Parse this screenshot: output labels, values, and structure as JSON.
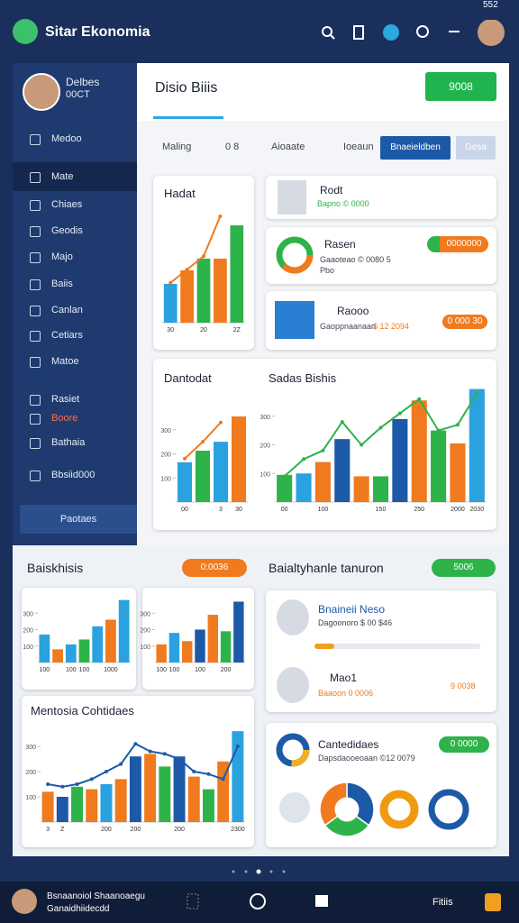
{
  "status": "552",
  "header": {
    "title": "Sitar Ekonomia"
  },
  "profile": {
    "name": "Delbes",
    "sub": "00CT"
  },
  "sidebar": {
    "items": [
      "Medoo",
      "Mate",
      "Chiaes",
      "Geodis",
      "Majo",
      "Baiis",
      "Canlan",
      "Cetiars",
      "Matoe",
      "Rasiet",
      "Boore",
      "Bathaia",
      "Bbsiid000"
    ],
    "button": "Paotaes"
  },
  "main": {
    "title": "Disio Biiis",
    "button": "9008",
    "tabs": [
      "Maling",
      "0 8",
      "Aioaate",
      "Ioeaun",
      "Bnaeieldben",
      "Gesa"
    ]
  },
  "people": [
    {
      "name": "Rodt",
      "detail": "Bapno © 0000"
    },
    {
      "name": "Rasen",
      "detail": "Gaaoteao © 0080 5",
      "detail2": "Pbo",
      "badge": "0000000"
    },
    {
      "name": "Raooo",
      "detail": "Gaoppnaanaan",
      "value": "$ 12 2094",
      "badge": "0 000 30"
    }
  ],
  "lower": {
    "left_title": "Baiskhisis",
    "left_pill": "0:0036",
    "right_title": "Baialtyhanle tanuron",
    "right_pill": "5006",
    "persons": [
      {
        "name": "Bnaineii Neso",
        "detail": "Dagoonoro $ 00 $46"
      },
      {
        "name": "Mao1",
        "detail": "Baaoon 0 0006",
        "badge": "9 0038"
      }
    ],
    "pill2": "0 0000"
  },
  "footer": {
    "name": "Bsnaanoiol Shaanoaegu",
    "sub": "Ganaidhiidecdd",
    "label": "Fitiis"
  },
  "charts": [
    {
      "type": "bar",
      "title": "Hadat",
      "categories": [
        "30",
        null,
        "20",
        null,
        "2Z"
      ],
      "values": [
        146,
        197,
        241,
        241,
        366
      ],
      "colors": [
        "#2aa2e0",
        "#f07a1e",
        "#2eb34a",
        "#f07a1e",
        "#2eb34a"
      ],
      "line": {
        "color": "#f07a1e",
        "values": [
          150,
          200,
          250,
          400,
          null
        ]
      },
      "ylim": [
        0,
        400
      ],
      "yticks": []
    },
    {
      "type": "bar",
      "title": "Dantodat",
      "categories": [
        "00",
        null,
        "3",
        "30"
      ],
      "values": [
        165,
        213,
        250,
        355
      ],
      "colors": [
        "#2aa2e0",
        "#2eb34a",
        "#2aa2e0",
        "#f07a1e"
      ],
      "line": {
        "color": "#f07a1e",
        "values": [
          180,
          250,
          330,
          null
        ]
      },
      "ylim": [
        0,
        400
      ],
      "yticks": [
        100,
        200,
        300
      ]
    },
    {
      "type": "bar",
      "title": "Sadas Bishis",
      "categories": [
        "00",
        null,
        "100",
        null,
        null,
        "150",
        null,
        "250",
        null,
        "2000",
        "2030"
      ],
      "values": [
        95,
        100,
        140,
        220,
        90,
        90,
        290,
        355,
        250,
        205,
        395
      ],
      "colors": [
        "#2eb34a",
        "#2aa2e0",
        "#f07a1e",
        "#1c5aa8",
        "#f07a1e",
        "#2eb34a",
        "#1c5aa8",
        "#f07a1e",
        "#2eb34a",
        "#f07a1e",
        "#2aa2e0"
      ],
      "line": {
        "color": "#2eb34a",
        "values": [
          90,
          150,
          180,
          280,
          200,
          260,
          310,
          360,
          250,
          270,
          380
        ]
      },
      "ylim": [
        0,
        400
      ],
      "yticks": [
        100,
        200,
        300
      ]
    },
    {
      "type": "bar",
      "categories": [
        "100",
        null,
        "100",
        "100",
        null,
        "1000",
        null
      ],
      "values": [
        170,
        80,
        110,
        140,
        220,
        260,
        380
      ],
      "colors": [
        "#2aa2e0",
        "#f07a1e",
        "#2aa2e0",
        "#2eb34a",
        "#2aa2e0",
        "#f07a1e",
        "#2aa2e0"
      ],
      "ylim": [
        0,
        400
      ],
      "yticks": [
        100,
        200,
        300
      ]
    },
    {
      "type": "bar",
      "categories": [
        "100",
        "100",
        null,
        "100",
        null,
        "200",
        null
      ],
      "values": [
        110,
        180,
        130,
        200,
        290,
        190,
        370
      ],
      "colors": [
        "#f07a1e",
        "#2aa2e0",
        "#f07a1e",
        "#1c5aa8",
        "#f07a1e",
        "#2eb34a",
        "#1c5aa8"
      ],
      "ylim": [
        0,
        400
      ],
      "yticks": [
        100,
        200,
        300
      ]
    },
    {
      "type": "bar",
      "title": "Mentosia Cohtidaes",
      "categories": [
        "3",
        "Z",
        null,
        null,
        "200",
        null,
        "200",
        null,
        null,
        "200",
        null,
        null,
        null,
        "2300"
      ],
      "values": [
        120,
        100,
        140,
        130,
        150,
        170,
        260,
        270,
        220,
        260,
        180,
        130,
        240,
        360
      ],
      "colors": [
        "#f07a1e",
        "#1c5aa8",
        "#2eb34a",
        "#f07a1e",
        "#2aa2e0",
        "#f07a1e",
        "#1c5aa8",
        "#f07a1e",
        "#2eb34a",
        "#1c5aa8",
        "#f07a1e",
        "#2eb34a",
        "#f07a1e",
        "#2aa2e0"
      ],
      "line": {
        "color": "#1c5aa8",
        "values": [
          150,
          140,
          150,
          170,
          200,
          230,
          310,
          280,
          270,
          250,
          200,
          190,
          170,
          300
        ]
      },
      "ylim": [
        0,
        400
      ],
      "yticks": [
        100,
        200,
        300
      ]
    },
    {
      "type": "pie",
      "title": "Cantedidaes",
      "subtitle": "Dapsdaooeoaan ©12 0079",
      "values": [
        35,
        30,
        35
      ],
      "colors": [
        "#1c5aa8",
        "#2eb34a",
        "#f07a1e"
      ]
    }
  ]
}
